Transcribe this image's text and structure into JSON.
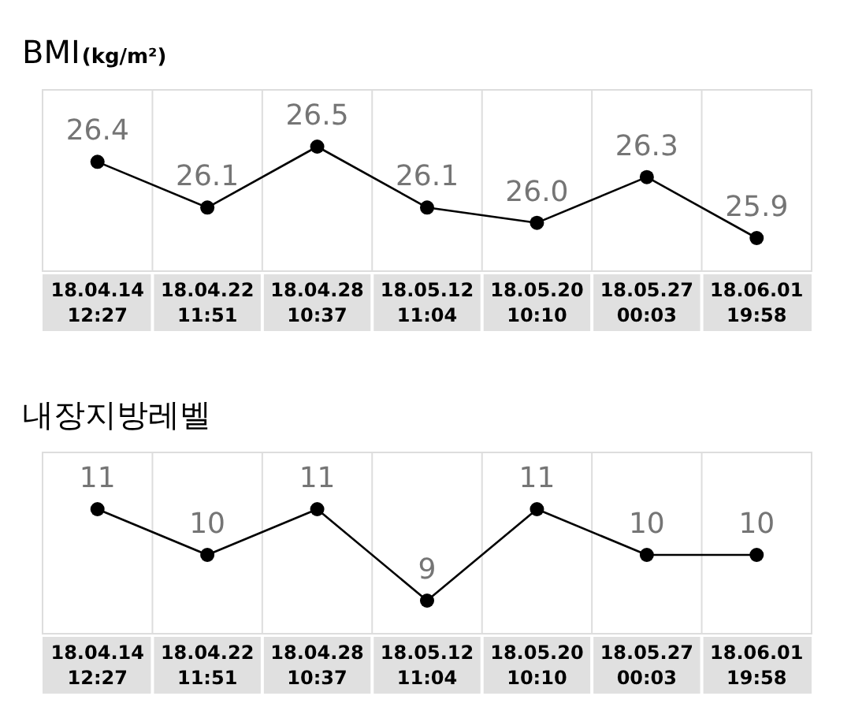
{
  "chart_data": [
    {
      "type": "line",
      "title": "BMI",
      "subtitle": "(kg/m²)",
      "categories": [
        "18.04.14\n12:27",
        "18.04.22\n11:51",
        "18.04.28\n10:37",
        "18.05.12\n11:04",
        "18.05.20\n10:10",
        "18.05.27\n00:03",
        "18.06.01\n19:58"
      ],
      "series": [
        {
          "color": "#000000",
          "values": [
            26.4,
            26.1,
            26.5,
            26.1,
            26.0,
            26.3,
            25.9
          ],
          "value_labels": [
            "26.4",
            "26.1",
            "26.5",
            "26.1",
            "26.0",
            "26.3",
            "25.9"
          ]
        }
      ],
      "marker": "circle",
      "grid": "x"
    },
    {
      "type": "line",
      "title": "내장지방레벨",
      "categories": [
        "18.04.14\n12:27",
        "18.04.22\n11:51",
        "18.04.28\n10:37",
        "18.05.12\n11:04",
        "18.05.20\n10:10",
        "18.05.27\n00:03",
        "18.06.01\n19:58"
      ],
      "series": [
        {
          "color": "#000000",
          "values": [
            11,
            10,
            11,
            9,
            11,
            10,
            10
          ]
        }
      ],
      "data_labels": true,
      "marker": "circle",
      "grid": "x"
    }
  ]
}
